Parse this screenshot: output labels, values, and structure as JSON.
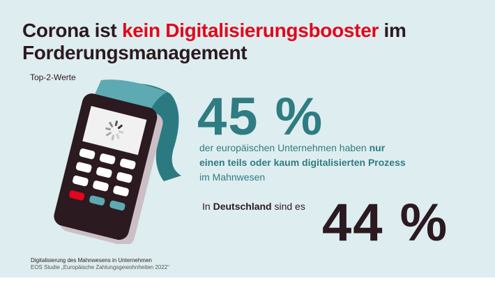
{
  "title": {
    "part1": "Corona ist ",
    "highlight": "kein Digitalisierungsbooster",
    "part2": " im",
    "line2": "Forderungsmanagement"
  },
  "subtitle": "Top-2-Werte",
  "stat_eu": {
    "value": "45 %",
    "text_pre": "der europäischen Unternehmen haben ",
    "text_bold1": "nur",
    "text_bold2": "einen teils oder kaum digitalisierten Prozess",
    "text_post": "im Mahnwesen"
  },
  "stat_de": {
    "pre": "In ",
    "country": "Deutschland",
    "post": " sind es",
    "value": "44 %"
  },
  "footer": {
    "line1": "Digitalisierung des Mahnwesens in Unternehmen",
    "line2": "EOS Studie „Europäische Zahlungsgewohnheiten 2022“"
  },
  "colors": {
    "dark": "#2b1a20",
    "red": "#e3051b",
    "teal": "#2f7c83",
    "background": "#deedef"
  }
}
